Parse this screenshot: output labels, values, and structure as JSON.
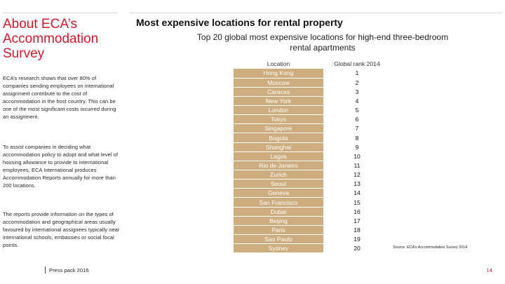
{
  "sidebar": {
    "title": "About ECA’s Accommodation Survey",
    "paragraphs": [
      "ECA’s research shows that over 80% of companies sending employees on international assignment contribute to the cost of accommodation in the host country. This can be one of the most significant costs incurred during an assignment.",
      "To assist companies in deciding what accommodation policy to adopt and what level of housing allowance to provide to international employees, ECA International produces Accommodation Reports annually for more than 200 locations.",
      "The reports provide information on the types of accommodation and geographical areas usually favoured by international assignees typically near international schools, embassies or social focal points."
    ]
  },
  "main": {
    "title": "Most expensive locations for rental property",
    "subtitle": "Top 20 global most expensive locations for high-end three-bedroom rental apartments"
  },
  "table": {
    "headers": {
      "location": "Location",
      "rank": "Global rank 2014"
    },
    "rows": [
      {
        "location": "Hong Kong",
        "rank": "1"
      },
      {
        "location": "Moscow",
        "rank": "2"
      },
      {
        "location": "Caracas",
        "rank": "3"
      },
      {
        "location": "New York",
        "rank": "4"
      },
      {
        "location": "London",
        "rank": "5"
      },
      {
        "location": "Tokyo",
        "rank": "6"
      },
      {
        "location": "Singapore",
        "rank": "7"
      },
      {
        "location": "Bogota",
        "rank": "8"
      },
      {
        "location": "Shanghai",
        "rank": "9"
      },
      {
        "location": "Lagos",
        "rank": "10"
      },
      {
        "location": "Rio de Janeiro",
        "rank": "11"
      },
      {
        "location": "Zurich",
        "rank": "12"
      },
      {
        "location": "Seoul",
        "rank": "13"
      },
      {
        "location": "Geneva",
        "rank": "14"
      },
      {
        "location": "San Francisco",
        "rank": "15"
      },
      {
        "location": "Dubai",
        "rank": "16"
      },
      {
        "location": "Beijing",
        "rank": "17"
      },
      {
        "location": "Paris",
        "rank": "18"
      },
      {
        "location": "Sao Paulo",
        "rank": "19"
      },
      {
        "location": "Sydney",
        "rank": "20"
      }
    ]
  },
  "source": "Source: ECA’s Accommodation Survey 2014",
  "footer": {
    "label": "Press pack 2016",
    "page": "14"
  },
  "colors": {
    "accent": "#d0192c",
    "location_cell": "#cdac7d"
  }
}
